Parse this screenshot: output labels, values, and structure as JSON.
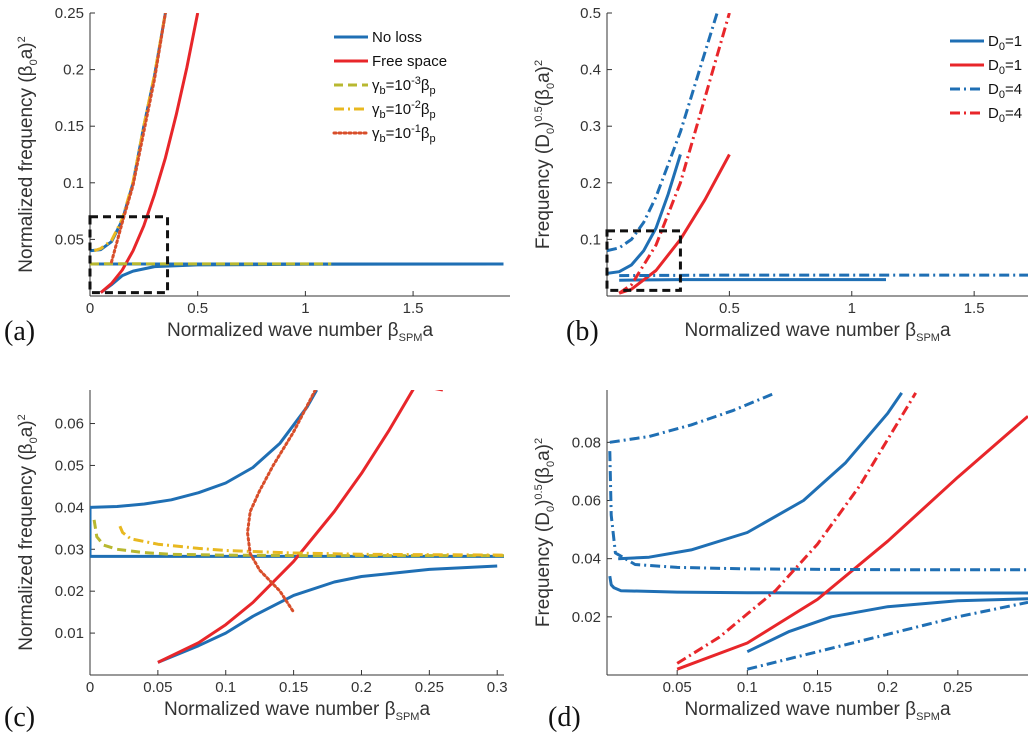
{
  "colors": {
    "blue": "#1f6fb4",
    "red": "#e8262a",
    "olive": "#b8b830",
    "gold": "#e8b820",
    "orange": "#d84e2a",
    "box": "#111111"
  },
  "panels": {
    "a": {
      "label": "(a)",
      "xlabel": "Normalized wave number",
      "xlabel_sym": "β",
      "xlabel_sub": "SPM",
      "xlabel_tail": "a",
      "ylabel": "Normalized frequency (β",
      "ylabel_sub": "0",
      "ylabel_tail": "a)",
      "ylabel_sup": "2"
    },
    "b": {
      "label": "(b)",
      "xlabel": "Normalized wave number",
      "xlabel_sym": "β",
      "xlabel_sub": "SPM",
      "xlabel_tail": "a",
      "ylabel": "Frequency (D",
      "ylabel_sub": "0",
      "ylabel_mid": ")",
      "ylabel_sup1": "0.5",
      "ylabel_tail": "(β",
      "ylabel_sub2": "0",
      "ylabel_tail2": "a)",
      "ylabel_sup2": "2"
    },
    "c": {
      "label": "(c)",
      "xlabel": "Normalized wave number",
      "xlabel_sym": "β",
      "xlabel_sub": "SPM",
      "xlabel_tail": "a",
      "ylabel": "Normalized frequency (β",
      "ylabel_sub": "0",
      "ylabel_tail": "a)",
      "ylabel_sup": "2"
    },
    "d": {
      "label": "(d)",
      "xlabel": "Normalized wave number",
      "xlabel_sym": "β",
      "xlabel_sub": "SPM",
      "xlabel_tail": "a",
      "ylabel": "Frequency (D",
      "ylabel_sub": "0",
      "ylabel_mid": ")",
      "ylabel_sup1": "0.5",
      "ylabel_tail": "(β",
      "ylabel_sub2": "0",
      "ylabel_tail2": "a)",
      "ylabel_sup2": "2"
    }
  },
  "legend_a": [
    {
      "text": "No loss",
      "color": "blue",
      "dash": "solid"
    },
    {
      "text": "Free space",
      "color": "red",
      "dash": "solid"
    },
    {
      "pre": "γ",
      "sub1": "b",
      "mid": "=10",
      "sup": "-3",
      "post": "β",
      "sub2": "p",
      "color": "olive",
      "dash": "dash"
    },
    {
      "pre": "γ",
      "sub1": "b",
      "mid": "=10",
      "sup": "-2",
      "post": "β",
      "sub2": "p",
      "color": "gold",
      "dash": "dashdot"
    },
    {
      "pre": "γ",
      "sub1": "b",
      "mid": "=10",
      "sup": "-1",
      "post": "β",
      "sub2": "p",
      "color": "orange",
      "dash": "dot"
    }
  ],
  "legend_b": [
    {
      "pre": "D",
      "sub1": "0",
      "mid": "=1",
      "color": "blue",
      "dash": "solid"
    },
    {
      "pre": "D",
      "sub1": "0",
      "mid": "=1",
      "color": "red",
      "dash": "solid"
    },
    {
      "pre": "D",
      "sub1": "0",
      "mid": "=4",
      "color": "blue",
      "dash": "dashdot"
    },
    {
      "pre": "D",
      "sub1": "0",
      "mid": "=4",
      "color": "red",
      "dash": "dashdot"
    }
  ],
  "chart_data": [
    {
      "type": "line",
      "panel": "a",
      "xlim": [
        0,
        1.95
      ],
      "ylim": [
        0,
        0.25
      ],
      "xticks": [
        "0",
        "0.5",
        "1",
        "1.5"
      ],
      "xtick_values": [
        0,
        0.5,
        1,
        1.5
      ],
      "yticks": [
        "0.05",
        "0.1",
        "0.15",
        "0.2",
        "0.25"
      ],
      "ytick_values": [
        0.05,
        0.1,
        0.15,
        0.2,
        0.25
      ],
      "zoom_box": {
        "x": [
          0,
          0.36
        ],
        "y": [
          0.003,
          0.07
        ]
      },
      "series": [
        {
          "name": "No loss",
          "color": "blue",
          "dash": "solid",
          "x": [
            0,
            1.92
          ],
          "y": [
            0.0283,
            0.0283
          ]
        },
        {
          "name": "No loss",
          "color": "blue",
          "dash": "solid",
          "x": [
            0,
            0.05,
            0.1,
            0.15,
            0.2,
            0.25,
            0.3,
            0.35
          ],
          "y": [
            0.04,
            0.041,
            0.048,
            0.067,
            0.1,
            0.15,
            0.195,
            0.25
          ]
        },
        {
          "name": "No loss",
          "color": "blue",
          "dash": "solid",
          "x": [
            0.05,
            0.1,
            0.15,
            0.2,
            0.3,
            0.5,
            1.0,
            1.9
          ],
          "y": [
            0.003,
            0.01,
            0.018,
            0.022,
            0.026,
            0.0275,
            0.028,
            0.0283
          ]
        },
        {
          "name": "Free space",
          "color": "red",
          "dash": "solid",
          "x": [
            0.05,
            0.1,
            0.15,
            0.2,
            0.25,
            0.3,
            0.35,
            0.4,
            0.45,
            0.5
          ],
          "y": [
            0.003,
            0.011,
            0.023,
            0.04,
            0.062,
            0.09,
            0.122,
            0.16,
            0.202,
            0.25
          ]
        },
        {
          "name": "γb=10-3βp",
          "color": "olive",
          "dash": "dash",
          "x": [
            0,
            0.1,
            0.2,
            0.3,
            0.5,
            0.8,
            1.12
          ],
          "y": [
            0.0283,
            0.0285,
            0.0285,
            0.0284,
            0.0284,
            0.0284,
            0.0284
          ]
        },
        {
          "name": "γb=10-2βp",
          "color": "gold",
          "dash": "dashdot",
          "x": [
            0.02,
            0.05,
            0.1,
            0.15,
            0.2,
            0.25,
            0.3,
            0.35
          ],
          "y": [
            0.04,
            0.042,
            0.049,
            0.068,
            0.101,
            0.15,
            0.196,
            0.25
          ]
        },
        {
          "name": "γb=10-1βp",
          "color": "orange",
          "dash": "dot",
          "x": [
            0.1,
            0.12,
            0.15,
            0.2,
            0.25,
            0.3,
            0.35
          ],
          "y": [
            0.03,
            0.044,
            0.065,
            0.098,
            0.145,
            0.192,
            0.25
          ]
        }
      ]
    },
    {
      "type": "line",
      "panel": "b",
      "xlim": [
        0,
        1.72
      ],
      "ylim": [
        0,
        0.5
      ],
      "xticks": [
        "0.5",
        "1",
        "1.5"
      ],
      "xtick_values": [
        0.5,
        1,
        1.5
      ],
      "yticks": [
        "0.1",
        "0.2",
        "0.3",
        "0.4",
        "0.5"
      ],
      "ytick_values": [
        0.1,
        0.2,
        0.3,
        0.4,
        0.5
      ],
      "zoom_box": {
        "x": [
          0,
          0.3
        ],
        "y": [
          0.01,
          0.115
        ]
      },
      "series": [
        {
          "name": "D0=1",
          "color": "blue",
          "dash": "solid",
          "x": [
            0,
            0.05,
            0.1,
            0.15,
            0.2,
            0.25,
            0.3
          ],
          "y": [
            0.04,
            0.043,
            0.055,
            0.08,
            0.12,
            0.18,
            0.25
          ]
        },
        {
          "name": "D0=1",
          "color": "blue",
          "dash": "solid",
          "x": [
            0.05,
            0.3,
            1.14
          ],
          "y": [
            0.028,
            0.029,
            0.029
          ]
        },
        {
          "name": "D0=1",
          "color": "red",
          "dash": "solid",
          "x": [
            0.05,
            0.1,
            0.2,
            0.3,
            0.4,
            0.5
          ],
          "y": [
            0.005,
            0.012,
            0.045,
            0.1,
            0.17,
            0.25
          ]
        },
        {
          "name": "D0=4",
          "color": "blue",
          "dash": "dashdot",
          "x": [
            0,
            0.05,
            0.1,
            0.15,
            0.2,
            0.3,
            0.4,
            0.45
          ],
          "y": [
            0.08,
            0.085,
            0.1,
            0.13,
            0.175,
            0.29,
            0.43,
            0.5
          ]
        },
        {
          "name": "D0=4",
          "color": "blue",
          "dash": "dashdot",
          "x": [
            0.05,
            0.5,
            1.0,
            1.72
          ],
          "y": [
            0.036,
            0.037,
            0.037,
            0.037
          ]
        },
        {
          "name": "D0=4",
          "color": "red",
          "dash": "dashdot",
          "x": [
            0.05,
            0.1,
            0.2,
            0.3,
            0.4,
            0.5
          ],
          "y": [
            0.005,
            0.02,
            0.09,
            0.2,
            0.35,
            0.5
          ]
        }
      ]
    },
    {
      "type": "line",
      "panel": "c",
      "xlim": [
        0,
        0.305
      ],
      "ylim": [
        0,
        0.068
      ],
      "xticks": [
        "0",
        "0.05",
        "0.1",
        "0.15",
        "0.2",
        "0.25",
        "0.3"
      ],
      "xtick_values": [
        0,
        0.05,
        0.1,
        0.15,
        0.2,
        0.25,
        0.3
      ],
      "yticks": [
        "0.01",
        "0.02",
        "0.03",
        "0.04",
        "0.05",
        "0.06"
      ],
      "ytick_values": [
        0.01,
        0.02,
        0.03,
        0.04,
        0.05,
        0.06
      ],
      "series": [
        {
          "name": "No loss",
          "color": "blue",
          "dash": "solid",
          "x": [
            0,
            0.305
          ],
          "y": [
            0.0283,
            0.0283
          ]
        },
        {
          "name": "No loss",
          "color": "blue",
          "dash": "solid",
          "x": [
            0,
            0.0
          ],
          "y": [
            0.0283,
            0.04
          ]
        },
        {
          "name": "No loss",
          "color": "blue",
          "dash": "solid",
          "x": [
            0,
            0.02,
            0.04,
            0.06,
            0.08,
            0.1,
            0.12,
            0.14,
            0.16,
            0.167
          ],
          "y": [
            0.04,
            0.0402,
            0.0408,
            0.0418,
            0.0435,
            0.0458,
            0.0495,
            0.0553,
            0.064,
            0.068
          ]
        },
        {
          "name": "No loss",
          "color": "blue",
          "dash": "solid",
          "x": [
            0.05,
            0.08,
            0.1,
            0.12,
            0.15,
            0.18,
            0.2,
            0.25,
            0.3
          ],
          "y": [
            0.003,
            0.007,
            0.01,
            0.014,
            0.019,
            0.0222,
            0.0235,
            0.0252,
            0.026
          ]
        },
        {
          "name": "Free space",
          "color": "red",
          "dash": "solid",
          "x": [
            0.05,
            0.08,
            0.1,
            0.12,
            0.15,
            0.18,
            0.2,
            0.22,
            0.24,
            0.26
          ],
          "y": [
            0.003,
            0.0077,
            0.012,
            0.0173,
            0.0271,
            0.039,
            0.0481,
            0.0582,
            0.0692,
            0.068
          ]
        },
        {
          "name": "γb=10-3βp",
          "color": "olive",
          "dash": "dash",
          "x": [
            0.003,
            0.005,
            0.01,
            0.02,
            0.04,
            0.06,
            0.1,
            0.15,
            0.2,
            0.305
          ],
          "y": [
            0.037,
            0.033,
            0.031,
            0.03,
            0.0292,
            0.0288,
            0.0286,
            0.0285,
            0.0285,
            0.0285
          ]
        },
        {
          "name": "γb=10-2βp",
          "color": "gold",
          "dash": "dashdot",
          "x": [
            0.022,
            0.024,
            0.03,
            0.05,
            0.08,
            0.1,
            0.15,
            0.2,
            0.305
          ],
          "y": [
            0.0355,
            0.034,
            0.0325,
            0.0312,
            0.0302,
            0.0297,
            0.0291,
            0.0288,
            0.0286
          ]
        },
        {
          "name": "γb=10-1βp",
          "color": "orange",
          "dash": "dot",
          "x": [
            0.166,
            0.15,
            0.135,
            0.125,
            0.118,
            0.116,
            0.118,
            0.125,
            0.14,
            0.15
          ],
          "y": [
            0.068,
            0.058,
            0.05,
            0.044,
            0.039,
            0.034,
            0.029,
            0.025,
            0.02,
            0.015
          ]
        }
      ]
    },
    {
      "type": "line",
      "panel": "d",
      "xlim": [
        0,
        0.3
      ],
      "ylim": [
        0,
        0.098
      ],
      "xticks": [
        "0.05",
        "0.1",
        "0.15",
        "0.2",
        "0.25"
      ],
      "xtick_values": [
        0.05,
        0.1,
        0.15,
        0.2,
        0.25
      ],
      "yticks": [
        "0.02",
        "0.04",
        "0.06",
        "0.08"
      ],
      "ytick_values": [
        0.02,
        0.04,
        0.06,
        0.08
      ],
      "series": [
        {
          "name": "D0=1",
          "color": "blue",
          "dash": "solid",
          "x": [
            0.002,
            0.003,
            0.005,
            0.01,
            0.05,
            0.1,
            0.15,
            0.2,
            0.3
          ],
          "y": [
            0.034,
            0.031,
            0.03,
            0.029,
            0.0285,
            0.0283,
            0.0282,
            0.0282,
            0.0282
          ]
        },
        {
          "name": "D0=1",
          "color": "blue",
          "dash": "solid",
          "x": [
            0.008,
            0.03,
            0.06,
            0.1,
            0.14,
            0.17,
            0.2,
            0.21
          ],
          "y": [
            0.04,
            0.0405,
            0.043,
            0.049,
            0.06,
            0.073,
            0.09,
            0.097
          ]
        },
        {
          "name": "D0=1",
          "color": "blue",
          "dash": "solid",
          "x": [
            0.1,
            0.13,
            0.16,
            0.2,
            0.25,
            0.3
          ],
          "y": [
            0.008,
            0.015,
            0.02,
            0.0235,
            0.0255,
            0.0262
          ]
        },
        {
          "name": "D0=1",
          "color": "red",
          "dash": "solid",
          "x": [
            0.05,
            0.1,
            0.15,
            0.2,
            0.25,
            0.3
          ],
          "y": [
            0.002,
            0.011,
            0.026,
            0.046,
            0.068,
            0.089
          ]
        },
        {
          "name": "D0=4",
          "color": "blue",
          "dash": "dashdot",
          "x": [
            0.002,
            0.03,
            0.06,
            0.09,
            0.12
          ],
          "y": [
            0.08,
            0.082,
            0.086,
            0.091,
            0.097
          ]
        },
        {
          "name": "D0=4",
          "color": "blue",
          "dash": "dashdot",
          "x": [
            0.002,
            0.003,
            0.006,
            0.02,
            0.05,
            0.1,
            0.2,
            0.3
          ],
          "y": [
            0.077,
            0.055,
            0.042,
            0.038,
            0.037,
            0.0365,
            0.0362,
            0.0362
          ]
        },
        {
          "name": "D0=4",
          "color": "blue",
          "dash": "dashdot",
          "x": [
            0.1,
            0.15,
            0.2,
            0.25,
            0.3
          ],
          "y": [
            0.002,
            0.008,
            0.014,
            0.02,
            0.025
          ]
        },
        {
          "name": "D0=4",
          "color": "red",
          "dash": "dashdot",
          "x": [
            0.05,
            0.08,
            0.1,
            0.12,
            0.15,
            0.18,
            0.22
          ],
          "y": [
            0.004,
            0.013,
            0.021,
            0.029,
            0.045,
            0.065,
            0.097
          ]
        }
      ]
    }
  ]
}
